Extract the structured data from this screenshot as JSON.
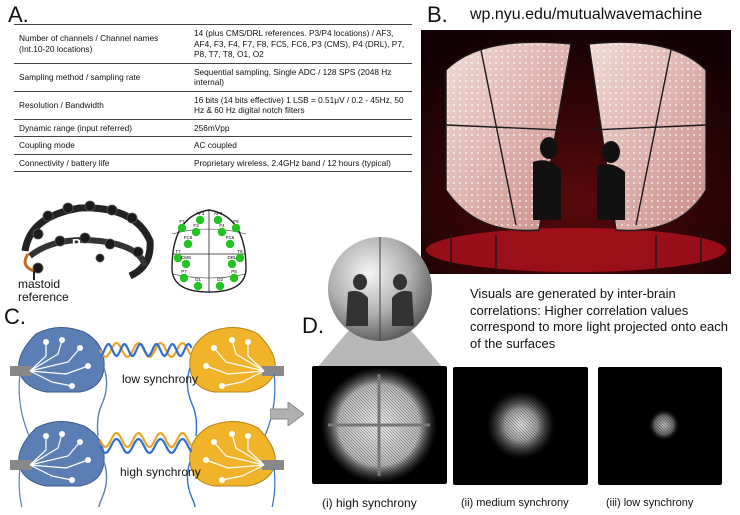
{
  "panels": {
    "a": "A.",
    "b": "B.",
    "c": "C.",
    "d": "D."
  },
  "table": [
    {
      "key": "Number of channels / Channel names (Int.10-20 locations)",
      "value": "14 (plus CMS/DRL references. P3/P4 locations) / AF3, AF4, F3, F4, F7, F8, FC5, FC6, P3 (CMS), P4 (DRL), P7, P8, T7, T8, O1, O2"
    },
    {
      "key": "Sampling method / sampling rate",
      "value": "Sequential sampling, Single ADC / 128 SPS (2048 Hz internal)"
    },
    {
      "key": "Resolution / Bandwidth",
      "value": "16 bits (14 bits effective) 1 LSB = 0.51μV / 0.2 - 45Hz, 50 Hz & 60 Hz digital notch filters"
    },
    {
      "key": "Dynamic range (input referred)",
      "value": "256mVpp"
    },
    {
      "key": "Coupling mode",
      "value": "AC coupled"
    },
    {
      "key": "Connectivity / battery life",
      "value": "Proprietary wireless, 2.4GHz band / 12 hours (typical)"
    }
  ],
  "headset": {
    "p_label": "P",
    "o_label": "O",
    "num7": "7",
    "num2": "2",
    "mastoid": "mastoid reference"
  },
  "electrodes": [
    "AF3",
    "AF4",
    "F7",
    "F3",
    "F4",
    "F8",
    "FC5",
    "FC6",
    "T7",
    "T8",
    "CMS",
    "DRL",
    "P7",
    "P8",
    "O1",
    "O2"
  ],
  "url": "wp.nyu.edu/mutualwavemachine",
  "sync": {
    "low": "low synchrony",
    "high": "high synchrony"
  },
  "visuals_text": "Visuals are generated by inter-brain correlations: Higher correlation values correspond to more light projected onto each of the surfaces",
  "captions": {
    "high": "(i) high synchrony",
    "medium": "(ii) medium synchrony",
    "low": "(iii) low synchrony"
  },
  "colors": {
    "blue_brain": "#5b7fb5",
    "yellow_brain": "#f0b32a",
    "wave_blue": "#2f6fd1",
    "wave_orange": "#e8a52a",
    "electrode_green": "#22c322",
    "arrow_gray": "#9a9a9a"
  }
}
